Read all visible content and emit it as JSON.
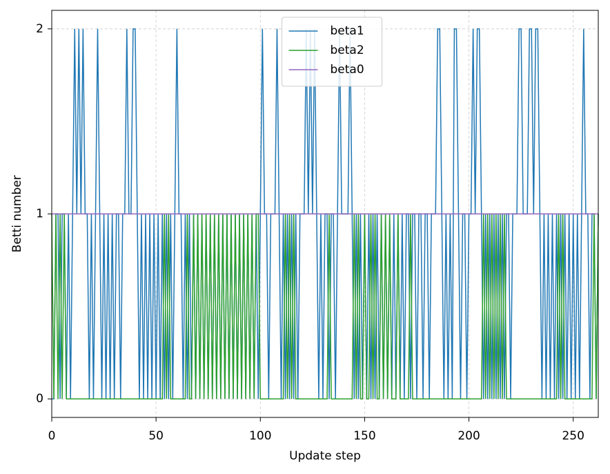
{
  "chart_data": {
    "type": "line",
    "xlabel": "Update step",
    "ylabel": "Betti number",
    "xlim": [
      0,
      262
    ],
    "xticks": [
      0,
      50,
      100,
      150,
      200,
      250
    ],
    "ylim": [
      -0.1,
      2.1
    ],
    "yticks": [
      0,
      1,
      2
    ],
    "grid": true,
    "legend": "upper center",
    "series": [
      {
        "name": "beta1",
        "color": "#1f77b4",
        "values": [
          0,
          0,
          1,
          1,
          0,
          1,
          1,
          0,
          1,
          0,
          1,
          2,
          1,
          2,
          1,
          2,
          1,
          1,
          0,
          1,
          0,
          1,
          2,
          1,
          0,
          1,
          0,
          1,
          0,
          1,
          0,
          1,
          1,
          0,
          1,
          1,
          2,
          1,
          1,
          2,
          2,
          1,
          0,
          1,
          0,
          1,
          0,
          1,
          0,
          1,
          0,
          1,
          0,
          1,
          0,
          1,
          0,
          1,
          0,
          1,
          2,
          1,
          1,
          0,
          1,
          0,
          1,
          0,
          1,
          0,
          1,
          0,
          1,
          0,
          1,
          0,
          1,
          0,
          1,
          0,
          1,
          0,
          1,
          0,
          1,
          0,
          1,
          0,
          1,
          0,
          1,
          0,
          1,
          0,
          1,
          0,
          1,
          0,
          1,
          0,
          1,
          2,
          1,
          1,
          0,
          1,
          1,
          1,
          2,
          1,
          0,
          1,
          0,
          1,
          0,
          1,
          0,
          1,
          0,
          1,
          1,
          1,
          2,
          1,
          2,
          1,
          2,
          1,
          0,
          1,
          0,
          1,
          1,
          0,
          1,
          1,
          0,
          1,
          2,
          1,
          1,
          1,
          1,
          2,
          1,
          0,
          1,
          0,
          1,
          0,
          1,
          0,
          1,
          0,
          1,
          0,
          1,
          0,
          1,
          0,
          1,
          0,
          1,
          0,
          1,
          0,
          1,
          0,
          1,
          0,
          1,
          1,
          0,
          1,
          1,
          0,
          1,
          1,
          0,
          1,
          1,
          0,
          1,
          1,
          1,
          2,
          2,
          1,
          0,
          1,
          0,
          1,
          0,
          2,
          2,
          1,
          0,
          1,
          1,
          0,
          1,
          1,
          2,
          1,
          2,
          2,
          1,
          0,
          1,
          0,
          1,
          0,
          1,
          0,
          1,
          0,
          1,
          0,
          1,
          1,
          0,
          1,
          1,
          1,
          2,
          2,
          1,
          1,
          1,
          2,
          2,
          1,
          2,
          2,
          1,
          0,
          1,
          0,
          1,
          0,
          1,
          0,
          1,
          0,
          1,
          0,
          1,
          0,
          1,
          0,
          1,
          0,
          1,
          0,
          1,
          2,
          1,
          1,
          0,
          1,
          1,
          0,
          1
        ]
      },
      {
        "name": "beta2",
        "color": "#2ca02c",
        "values": [
          1,
          0,
          1,
          0,
          1,
          0,
          1,
          0,
          0,
          0,
          0,
          0,
          0,
          0,
          0,
          0,
          0,
          0,
          0,
          0,
          0,
          0,
          0,
          0,
          0,
          0,
          0,
          0,
          0,
          0,
          0,
          0,
          0,
          0,
          0,
          0,
          0,
          0,
          0,
          0,
          0,
          0,
          0,
          0,
          0,
          0,
          0,
          0,
          0,
          0,
          0,
          0,
          0,
          0,
          1,
          0,
          1,
          0,
          0,
          0,
          0,
          0,
          0,
          0,
          0,
          1,
          0,
          0,
          1,
          0,
          1,
          0,
          1,
          0,
          1,
          0,
          1,
          0,
          1,
          0,
          1,
          0,
          1,
          0,
          1,
          0,
          1,
          0,
          1,
          0,
          1,
          0,
          1,
          0,
          1,
          0,
          1,
          0,
          1,
          1,
          0,
          0,
          0,
          0,
          0,
          0,
          0,
          0,
          0,
          0,
          0,
          0,
          1,
          0,
          1,
          0,
          1,
          0,
          0,
          0,
          0,
          0,
          0,
          0,
          0,
          0,
          0,
          0,
          0,
          0,
          0,
          0,
          0,
          1,
          0,
          0,
          0,
          0,
          0,
          0,
          0,
          0,
          0,
          0,
          0,
          1,
          0,
          1,
          0,
          0,
          1,
          0,
          0,
          1,
          0,
          1,
          0,
          0,
          1,
          0,
          1,
          0,
          1,
          0,
          0,
          0,
          1,
          0,
          0,
          0,
          0,
          0,
          1,
          0,
          0,
          0,
          0,
          0,
          0,
          0,
          0,
          0,
          0,
          0,
          0,
          0,
          0,
          0,
          0,
          0,
          0,
          0,
          0,
          0,
          0,
          0,
          0,
          0,
          0,
          0,
          0,
          0,
          0,
          0,
          0,
          0,
          0,
          1,
          0,
          1,
          0,
          1,
          0,
          1,
          0,
          1,
          0,
          1,
          0,
          0,
          0,
          0,
          0,
          0,
          0,
          0,
          0,
          0,
          0,
          0,
          0,
          0,
          0,
          0,
          0,
          0,
          0,
          0,
          0,
          0,
          0,
          0,
          0,
          1,
          0,
          1,
          0,
          0,
          0,
          0,
          0,
          0,
          0,
          0,
          0,
          0,
          0,
          0,
          0,
          0,
          1,
          0,
          1
        ]
      },
      {
        "name": "beta0",
        "color": "#9467bd",
        "values": [
          1,
          1,
          1,
          1,
          1,
          1,
          1,
          1,
          1,
          1,
          1,
          1,
          1,
          1,
          1,
          1,
          1,
          1,
          1,
          1,
          1,
          1,
          1,
          1,
          1,
          1,
          1,
          1,
          1,
          1,
          1,
          1,
          1,
          1,
          1,
          1,
          1,
          1,
          1,
          1,
          1,
          1,
          1,
          1,
          1,
          1,
          1,
          1,
          1,
          1,
          1,
          1,
          1,
          1,
          1,
          1,
          1,
          1,
          1,
          1,
          1,
          1,
          1,
          1,
          1,
          1,
          1,
          1,
          1,
          1,
          1,
          1,
          1,
          1,
          1,
          1,
          1,
          1,
          1,
          1,
          1,
          1,
          1,
          1,
          1,
          1,
          1,
          1,
          1,
          1,
          1,
          1,
          1,
          1,
          1,
          1,
          1,
          1,
          1,
          1,
          1,
          1,
          1,
          1,
          1,
          1,
          1,
          1,
          1,
          1,
          1,
          1,
          1,
          1,
          1,
          1,
          1,
          1,
          1,
          1,
          1,
          1,
          1,
          1,
          1,
          1,
          1,
          1,
          1,
          1,
          1,
          1,
          1,
          1,
          1,
          1,
          1,
          1,
          1,
          1,
          1,
          1,
          1,
          1,
          1,
          1,
          1,
          1,
          1,
          1,
          1,
          1,
          1,
          1,
          1,
          1,
          1,
          1,
          1,
          1,
          1,
          1,
          1,
          1,
          1,
          1,
          1,
          1,
          1,
          1,
          1,
          1,
          1,
          1,
          1,
          1,
          1,
          1,
          1,
          1,
          1,
          1,
          1,
          1,
          1,
          1,
          1,
          1,
          1,
          1,
          1,
          1,
          1,
          1,
          1,
          1,
          1,
          1,
          1,
          1,
          1,
          1,
          1,
          1,
          1,
          1,
          1,
          1,
          1,
          1,
          1,
          1,
          1,
          1,
          1,
          1,
          1,
          1,
          1,
          1,
          1,
          1,
          1,
          1,
          1,
          1,
          1,
          1,
          1,
          1,
          1,
          1,
          1,
          1,
          1,
          1,
          1,
          1,
          1,
          1,
          1,
          1,
          1,
          1,
          1,
          1,
          1,
          1,
          1,
          1,
          1,
          1,
          1,
          1,
          1,
          1,
          1,
          1,
          1,
          1,
          1,
          1,
          1
        ]
      }
    ]
  }
}
